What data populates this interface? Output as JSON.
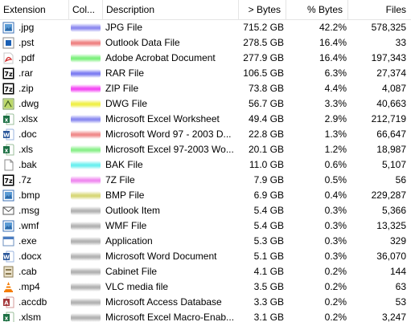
{
  "headers": {
    "extension": "Extension",
    "color": "Col...",
    "description": "Description",
    "bytes": "> Bytes",
    "pct_bytes": "% Bytes",
    "files": "Files"
  },
  "rows": [
    {
      "ext": ".jpg",
      "icon": "image-icon",
      "color": "#8f8cf0",
      "desc": "JPG File",
      "bytes": "715.2 GB",
      "pct": "42.2%",
      "files": "578,325"
    },
    {
      "ext": ".pst",
      "icon": "outlook-data-icon",
      "color": "#ef8484",
      "desc": "Outlook Data File",
      "bytes": "278.5 GB",
      "pct": "16.4%",
      "files": "33"
    },
    {
      "ext": ".pdf",
      "icon": "pdf-icon",
      "color": "#7ff07f",
      "desc": "Adobe Acrobat Document",
      "bytes": "277.9 GB",
      "pct": "16.4%",
      "files": "197,343"
    },
    {
      "ext": ".rar",
      "icon": "archive-7z-icon",
      "color": "#7f7ff2",
      "desc": "RAR File",
      "bytes": "106.5 GB",
      "pct": "6.3%",
      "files": "27,374"
    },
    {
      "ext": ".zip",
      "icon": "archive-7z-icon",
      "color": "#f44cf4",
      "desc": "ZIP File",
      "bytes": "73.8 GB",
      "pct": "4.4%",
      "files": "4,087"
    },
    {
      "ext": ".dwg",
      "icon": "dwg-file-icon",
      "color": "#f0f04a",
      "desc": "DWG File",
      "bytes": "56.7 GB",
      "pct": "3.3%",
      "files": "40,663"
    },
    {
      "ext": ".xlsx",
      "icon": "excel-icon",
      "color": "#8c8cf0",
      "desc": "Microsoft Excel Worksheet",
      "bytes": "49.4 GB",
      "pct": "2.9%",
      "files": "212,719"
    },
    {
      "ext": ".doc",
      "icon": "word-icon",
      "color": "#f08c8c",
      "desc": "Microsoft Word 97 - 2003 D...",
      "bytes": "22.8 GB",
      "pct": "1.3%",
      "files": "66,647"
    },
    {
      "ext": ".xls",
      "icon": "excel-icon",
      "color": "#8cf08c",
      "desc": "Microsoft Excel 97-2003 Wo...",
      "bytes": "20.1 GB",
      "pct": "1.2%",
      "files": "18,987"
    },
    {
      "ext": ".bak",
      "icon": "blank-file-icon",
      "color": "#6ef0f0",
      "desc": "BAK File",
      "bytes": "11.0 GB",
      "pct": "0.6%",
      "files": "5,107"
    },
    {
      "ext": ".7z",
      "icon": "archive-7z-icon",
      "color": "#f08cf0",
      "desc": "7Z File",
      "bytes": "7.9 GB",
      "pct": "0.5%",
      "files": "56"
    },
    {
      "ext": ".bmp",
      "icon": "image-icon",
      "color": "#d8d87a",
      "desc": "BMP File",
      "bytes": "6.9 GB",
      "pct": "0.4%",
      "files": "229,287"
    },
    {
      "ext": ".msg",
      "icon": "mail-icon",
      "color": "#b4b4b4",
      "desc": "Outlook Item",
      "bytes": "5.4 GB",
      "pct": "0.3%",
      "files": "5,366"
    },
    {
      "ext": ".wmf",
      "icon": "image-icon",
      "color": "#b4b4b4",
      "desc": "WMF File",
      "bytes": "5.4 GB",
      "pct": "0.3%",
      "files": "13,325"
    },
    {
      "ext": ".exe",
      "icon": "application-icon",
      "color": "#b4b4b4",
      "desc": "Application",
      "bytes": "5.3 GB",
      "pct": "0.3%",
      "files": "329"
    },
    {
      "ext": ".docx",
      "icon": "word-icon",
      "color": "#b4b4b4",
      "desc": "Microsoft Word Document",
      "bytes": "5.1 GB",
      "pct": "0.3%",
      "files": "36,070"
    },
    {
      "ext": ".cab",
      "icon": "cabinet-icon",
      "color": "#b4b4b4",
      "desc": "Cabinet File",
      "bytes": "4.1 GB",
      "pct": "0.2%",
      "files": "144"
    },
    {
      "ext": ".mp4",
      "icon": "vlc-icon",
      "color": "#b4b4b4",
      "desc": "VLC media file",
      "bytes": "3.5 GB",
      "pct": "0.2%",
      "files": "63"
    },
    {
      "ext": ".accdb",
      "icon": "access-icon",
      "color": "#b4b4b4",
      "desc": "Microsoft Access Database",
      "bytes": "3.3 GB",
      "pct": "0.2%",
      "files": "53"
    },
    {
      "ext": ".xlsm",
      "icon": "excel-icon",
      "color": "#b4b4b4",
      "desc": "Microsoft Excel Macro-Enab...",
      "bytes": "3.1 GB",
      "pct": "0.2%",
      "files": "3,247"
    }
  ]
}
